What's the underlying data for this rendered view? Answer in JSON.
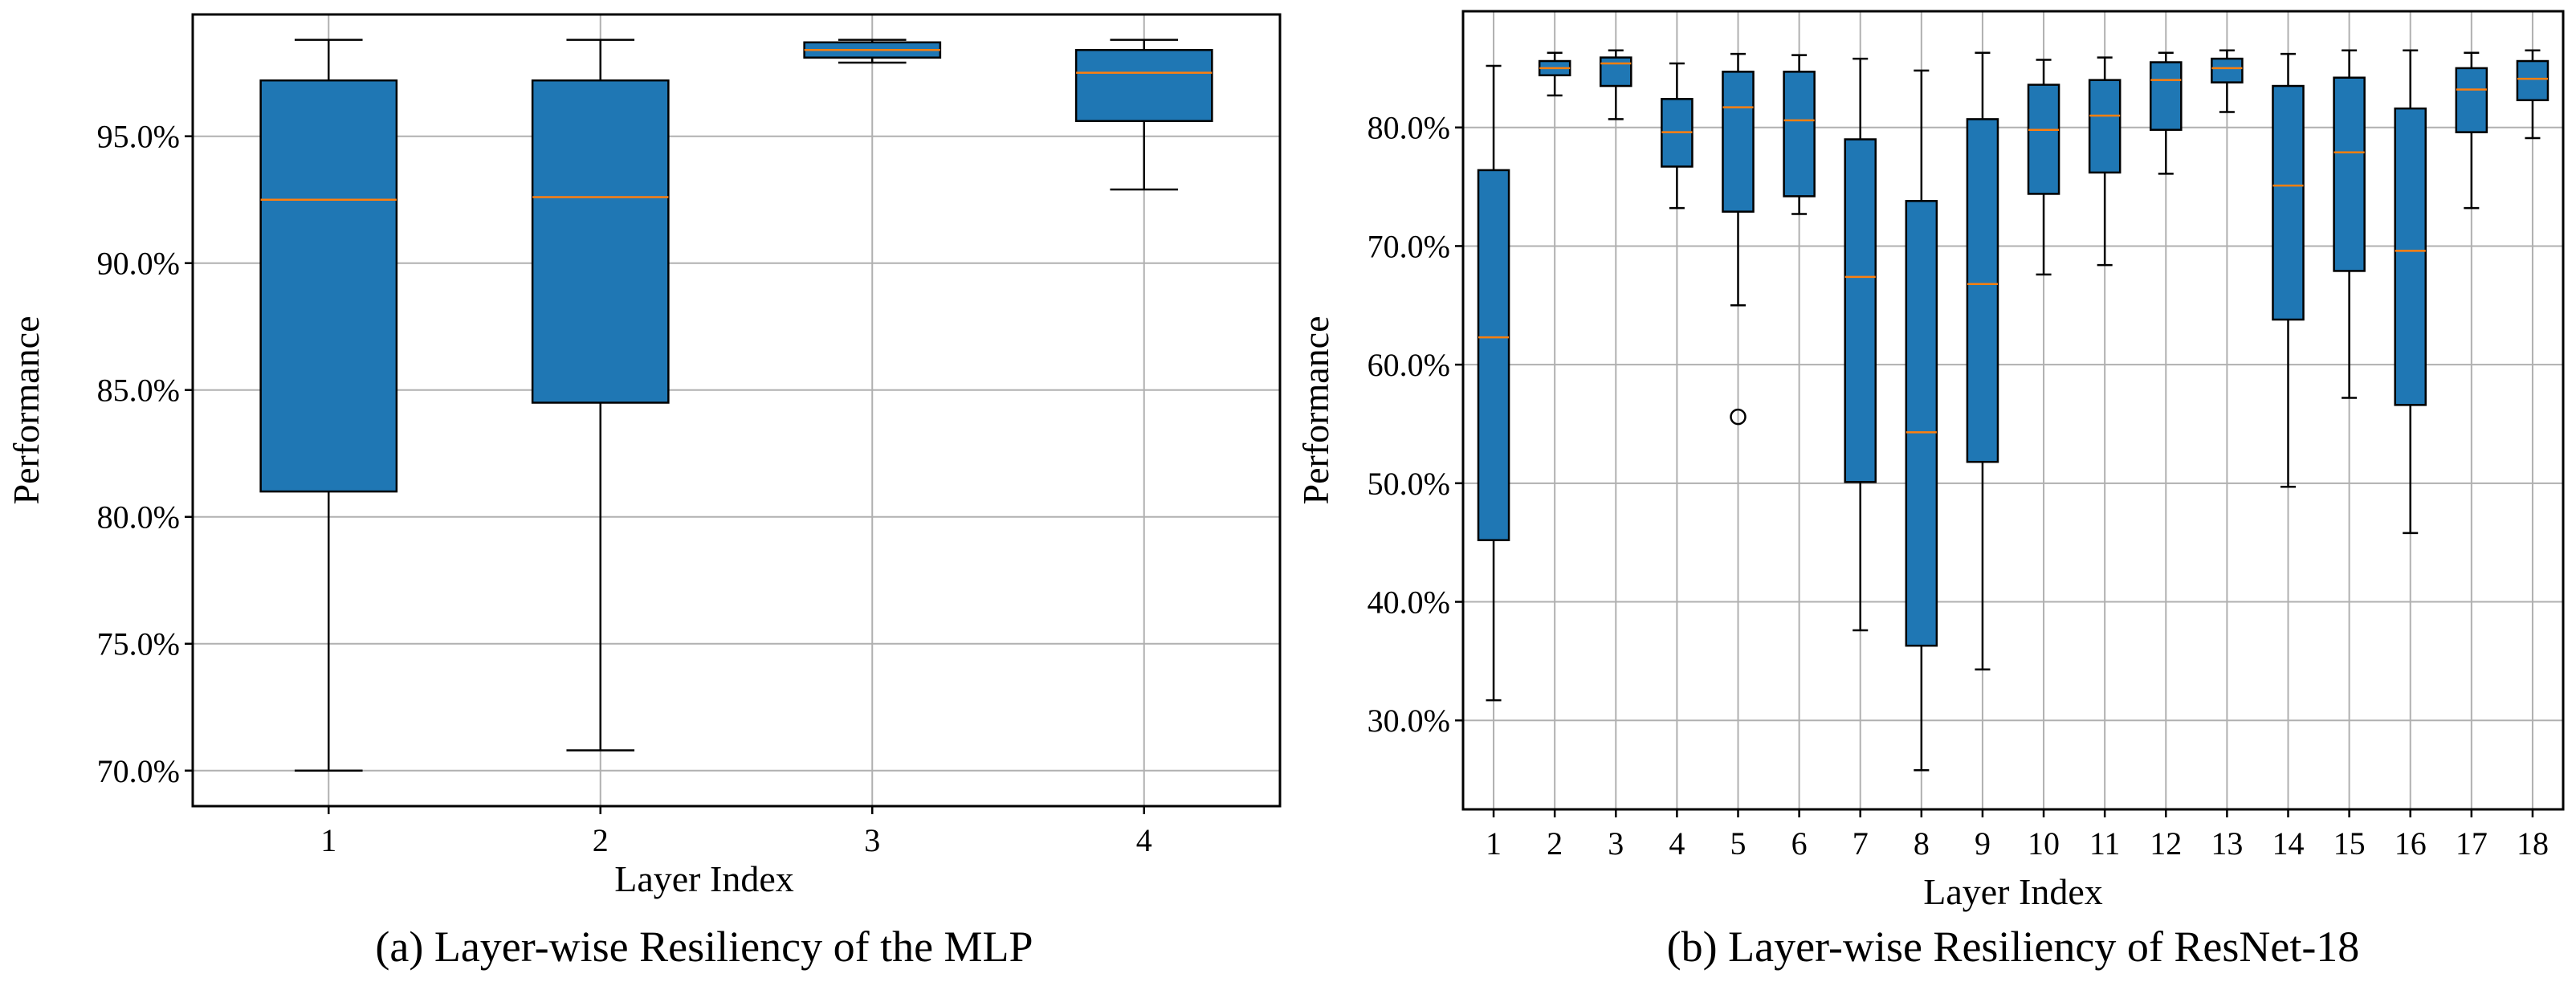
{
  "chart_data": [
    {
      "type": "box",
      "caption": "(a) Layer-wise Resiliency of the MLP",
      "xlabel": "Layer Index",
      "ylabel": "Performance",
      "ylim": [
        68.6,
        99.8
      ],
      "yticks": [
        "70.0%",
        "75.0%",
        "80.0%",
        "85.0%",
        "90.0%",
        "95.0%"
      ],
      "ytick_values": [
        70,
        75,
        80,
        85,
        90,
        95
      ],
      "grid": true,
      "box_color": "#1f77b4",
      "median_color": "#ff7f0e",
      "boxes": [
        {
          "label": "1",
          "whislo": 70.0,
          "q1": 81.0,
          "med": 92.5,
          "q3": 97.2,
          "whishi": 98.8,
          "fliers": []
        },
        {
          "label": "2",
          "whislo": 70.8,
          "q1": 84.5,
          "med": 92.6,
          "q3": 97.2,
          "whishi": 98.8,
          "fliers": []
        },
        {
          "label": "3",
          "whislo": 97.9,
          "q1": 98.1,
          "med": 98.4,
          "q3": 98.7,
          "whishi": 98.8,
          "fliers": []
        },
        {
          "label": "4",
          "whislo": 92.9,
          "q1": 95.6,
          "med": 97.5,
          "q3": 98.4,
          "whishi": 98.8,
          "fliers": []
        }
      ]
    },
    {
      "type": "box",
      "caption": "(b) Layer-wise Resiliency of ResNet-18",
      "xlabel": "Layer Index",
      "ylabel": "Performance",
      "ylim": [
        22.5,
        89.8
      ],
      "yticks": [
        "30.0%",
        "40.0%",
        "50.0%",
        "60.0%",
        "70.0%",
        "80.0%"
      ],
      "ytick_values": [
        30,
        40,
        50,
        60,
        70,
        80
      ],
      "grid": true,
      "box_color": "#1f77b4",
      "median_color": "#ff7f0e",
      "boxes": [
        {
          "label": "1",
          "whislo": 31.7,
          "q1": 45.2,
          "med": 62.3,
          "q3": 76.4,
          "whishi": 85.2,
          "fliers": []
        },
        {
          "label": "2",
          "whislo": 82.7,
          "q1": 84.4,
          "med": 85.0,
          "q3": 85.6,
          "whishi": 86.3,
          "fliers": []
        },
        {
          "label": "3",
          "whislo": 80.7,
          "q1": 83.5,
          "med": 85.4,
          "q3": 85.9,
          "whishi": 86.5,
          "fliers": []
        },
        {
          "label": "4",
          "whislo": 73.2,
          "q1": 76.7,
          "med": 79.6,
          "q3": 82.4,
          "whishi": 85.4,
          "fliers": []
        },
        {
          "label": "5",
          "whislo": 65.0,
          "q1": 72.9,
          "med": 81.7,
          "q3": 84.7,
          "whishi": 86.2,
          "fliers": [
            55.6
          ]
        },
        {
          "label": "6",
          "whislo": 72.7,
          "q1": 74.2,
          "med": 80.6,
          "q3": 84.7,
          "whishi": 86.1,
          "fliers": []
        },
        {
          "label": "7",
          "whislo": 37.6,
          "q1": 50.1,
          "med": 67.4,
          "q3": 79.0,
          "whishi": 85.8,
          "fliers": []
        },
        {
          "label": "8",
          "whislo": 25.8,
          "q1": 36.3,
          "med": 54.3,
          "q3": 73.8,
          "whishi": 84.8,
          "fliers": []
        },
        {
          "label": "9",
          "whislo": 34.3,
          "q1": 51.8,
          "med": 66.8,
          "q3": 80.7,
          "whishi": 86.3,
          "fliers": []
        },
        {
          "label": "10",
          "whislo": 67.6,
          "q1": 74.4,
          "med": 79.8,
          "q3": 83.6,
          "whishi": 85.7,
          "fliers": []
        },
        {
          "label": "11",
          "whislo": 68.4,
          "q1": 76.2,
          "med": 81.0,
          "q3": 84.0,
          "whishi": 85.9,
          "fliers": []
        },
        {
          "label": "12",
          "whislo": 76.1,
          "q1": 79.8,
          "med": 84.0,
          "q3": 85.5,
          "whishi": 86.3,
          "fliers": []
        },
        {
          "label": "13",
          "whislo": 81.3,
          "q1": 83.8,
          "med": 85.0,
          "q3": 85.8,
          "whishi": 86.5,
          "fliers": []
        },
        {
          "label": "14",
          "whislo": 49.7,
          "q1": 63.8,
          "med": 75.1,
          "q3": 83.5,
          "whishi": 86.2,
          "fliers": []
        },
        {
          "label": "15",
          "whislo": 57.2,
          "q1": 67.9,
          "med": 77.9,
          "q3": 84.2,
          "whishi": 86.5,
          "fliers": []
        },
        {
          "label": "16",
          "whislo": 45.8,
          "q1": 56.6,
          "med": 69.6,
          "q3": 81.6,
          "whishi": 86.5,
          "fliers": []
        },
        {
          "label": "17",
          "whislo": 73.2,
          "q1": 79.6,
          "med": 83.2,
          "q3": 85.0,
          "whishi": 86.3,
          "fliers": []
        },
        {
          "label": "18",
          "whislo": 79.1,
          "q1": 82.3,
          "med": 84.1,
          "q3": 85.6,
          "whishi": 86.5,
          "fliers": []
        }
      ]
    }
  ]
}
